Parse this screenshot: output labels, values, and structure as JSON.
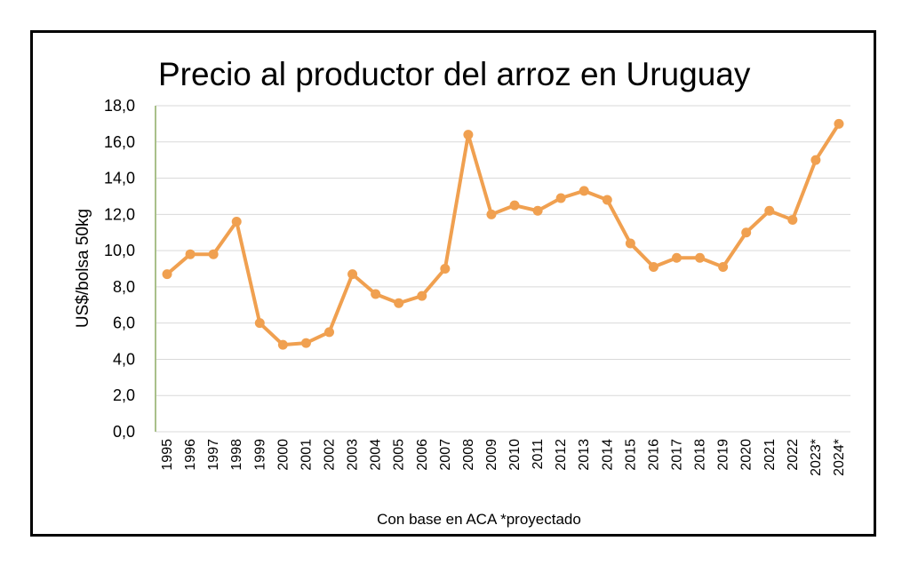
{
  "chart_data": {
    "type": "line",
    "title": "Precio al productor del arroz en Uruguay",
    "ylabel": "US$/bolsa 50kg",
    "xlabel": "Con base en ACA *proyectado",
    "ylim": [
      0,
      18
    ],
    "yticks": [
      "0,0",
      "2,0",
      "4,0",
      "6,0",
      "8,0",
      "10,0",
      "12,0",
      "14,0",
      "16,0",
      "18,0"
    ],
    "grid": true,
    "legend": "none",
    "categories": [
      "1995",
      "1996",
      "1997",
      "1998",
      "1999",
      "2000",
      "2001",
      "2002",
      "2003",
      "2004",
      "2005",
      "2006",
      "2007",
      "2008",
      "2009",
      "2010",
      "2011",
      "2012",
      "2013",
      "2014",
      "2015",
      "2016",
      "2017",
      "2018",
      "2019",
      "2020",
      "2021",
      "2022",
      "2023*",
      "2024*"
    ],
    "series": [
      {
        "color": "#f0a050",
        "values": [
          8.7,
          9.8,
          9.8,
          11.6,
          6.0,
          4.8,
          4.9,
          5.5,
          8.7,
          7.6,
          7.1,
          7.5,
          9.0,
          16.4,
          12.0,
          12.5,
          12.2,
          12.9,
          13.3,
          12.8,
          10.4,
          9.1,
          9.6,
          9.6,
          9.1,
          11.0,
          12.2,
          11.7,
          15.0,
          17.0
        ]
      }
    ],
    "colors": {
      "line": "#f0a050",
      "grid": "#d9d9d9",
      "axis": "#a9c08a",
      "frame": "#000000"
    }
  }
}
